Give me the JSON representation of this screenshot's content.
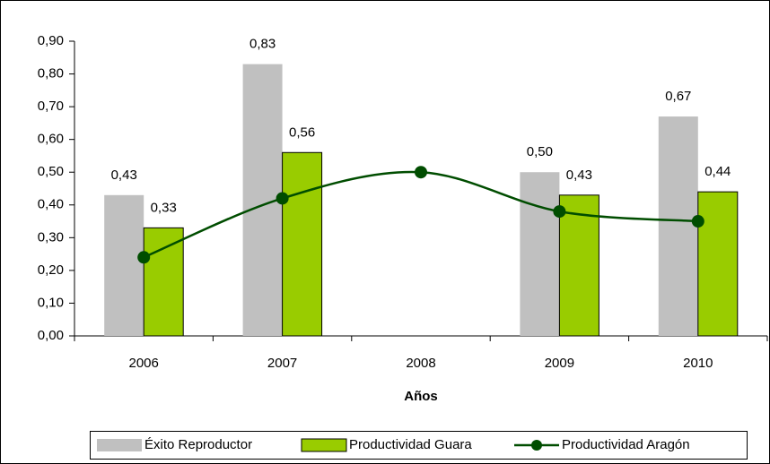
{
  "chart_data": {
    "type": "bar",
    "x_label": "Años",
    "categories": [
      "2006",
      "2007",
      "2008",
      "2009",
      "2010"
    ],
    "series": [
      {
        "name": "Éxito Reproductor",
        "type": "bar",
        "color": "#c0c0c0",
        "values": [
          0.43,
          0.83,
          null,
          0.5,
          0.67
        ],
        "value_labels": [
          "0,43",
          "0,83",
          null,
          "0,50",
          "0,67"
        ]
      },
      {
        "name": "Productividad Guara",
        "type": "bar",
        "color": "#99cc00",
        "values": [
          0.33,
          0.56,
          null,
          0.43,
          0.44
        ],
        "value_labels": [
          "0,33",
          "0,56",
          null,
          "0,43",
          "0,44"
        ]
      },
      {
        "name": "Productividad Aragón",
        "type": "line",
        "color": "#004d00",
        "values": [
          0.24,
          0.42,
          0.5,
          0.38,
          0.35
        ]
      }
    ],
    "ylim": [
      0,
      0.9
    ],
    "yticks": [
      {
        "value": 0,
        "label": "0,00"
      },
      {
        "value": 0.1,
        "label": "0,10"
      },
      {
        "value": 0.2,
        "label": "0,20"
      },
      {
        "value": 0.3,
        "label": "0,30"
      },
      {
        "value": 0.4,
        "label": "0,40"
      },
      {
        "value": 0.5,
        "label": "0,50"
      },
      {
        "value": 0.6,
        "label": "0,60"
      },
      {
        "value": 0.7,
        "label": "0,70"
      },
      {
        "value": 0.8,
        "label": "0,80"
      },
      {
        "value": 0.9,
        "label": "0,90"
      }
    ],
    "grid": false,
    "legend": "bottom"
  }
}
